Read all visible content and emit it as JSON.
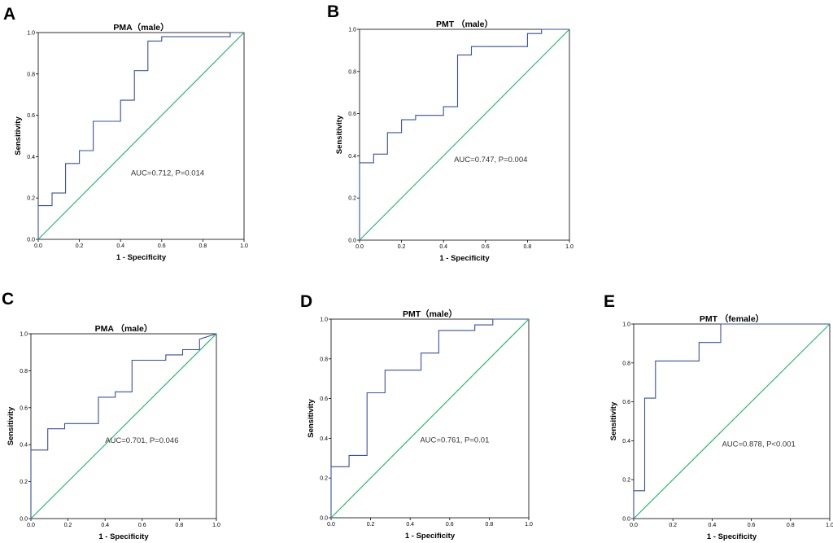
{
  "chart_data": [
    {
      "panel": "A",
      "type": "line",
      "title": "PMA（male）",
      "xlabel": "1 - Specificity",
      "ylabel": "Sensitivity",
      "xlim": [
        0,
        1
      ],
      "ylim": [
        0,
        1
      ],
      "ticks": [
        "0.0",
        "0.2",
        "0.4",
        "0.6",
        "0.8",
        "1.0"
      ],
      "annotation": "AUC=0.712, P=0.014",
      "series": [
        {
          "name": "ROC",
          "x": [
            0,
            0,
            0.067,
            0.067,
            0.133,
            0.133,
            0.2,
            0.2,
            0.267,
            0.267,
            0.4,
            0.4,
            0.467,
            0.467,
            0.533,
            0.533,
            0.6,
            0.6,
            0.933,
            0.933,
            1.0
          ],
          "y": [
            0,
            0.163,
            0.163,
            0.224,
            0.224,
            0.367,
            0.367,
            0.429,
            0.429,
            0.571,
            0.571,
            0.673,
            0.673,
            0.816,
            0.816,
            0.959,
            0.959,
            0.98,
            0.98,
            1.0,
            1.0
          ]
        },
        {
          "name": "Reference",
          "x": [
            0,
            1
          ],
          "y": [
            0,
            1
          ]
        }
      ]
    },
    {
      "panel": "B",
      "type": "line",
      "title": "PMT （male）",
      "xlabel": "1 - Specificity",
      "ylabel": "Sensitivity",
      "xlim": [
        0,
        1
      ],
      "ylim": [
        0,
        1
      ],
      "ticks": [
        "0.0",
        "0.2",
        "0.4",
        "0.6",
        "0.8",
        "1.0"
      ],
      "annotation": "AUC=0.747, P=0.004",
      "series": [
        {
          "name": "ROC",
          "x": [
            0,
            0,
            0.067,
            0.067,
            0.133,
            0.133,
            0.2,
            0.2,
            0.267,
            0.267,
            0.4,
            0.4,
            0.467,
            0.467,
            0.533,
            0.533,
            0.8,
            0.8,
            0.867,
            0.867,
            1.0
          ],
          "y": [
            0,
            0.367,
            0.367,
            0.408,
            0.408,
            0.51,
            0.51,
            0.571,
            0.571,
            0.592,
            0.592,
            0.633,
            0.633,
            0.878,
            0.878,
            0.918,
            0.918,
            0.98,
            0.98,
            1.0,
            1.0
          ]
        },
        {
          "name": "Reference",
          "x": [
            0,
            1
          ],
          "y": [
            0,
            1
          ]
        }
      ]
    },
    {
      "panel": "C",
      "type": "line",
      "title": "PMA （male）",
      "xlabel": "1 - Specificity",
      "ylabel": "Sensitivity",
      "xlim": [
        0,
        1
      ],
      "ylim": [
        0,
        1
      ],
      "ticks": [
        "0.0",
        "0.2",
        "0.4",
        "0.6",
        "0.8",
        "1.0"
      ],
      "annotation": "AUC=0.701, P=0.046",
      "series": [
        {
          "name": "ROC",
          "x": [
            0,
            0,
            0.091,
            0.091,
            0.182,
            0.182,
            0.364,
            0.364,
            0.455,
            0.455,
            0.545,
            0.545,
            0.727,
            0.727,
            0.818,
            0.818,
            0.909,
            0.909,
            1.0
          ],
          "y": [
            0,
            0.371,
            0.371,
            0.486,
            0.486,
            0.514,
            0.514,
            0.657,
            0.657,
            0.686,
            0.686,
            0.857,
            0.857,
            0.886,
            0.886,
            0.914,
            0.914,
            0.971,
            1.0
          ]
        },
        {
          "name": "Reference",
          "x": [
            0,
            1
          ],
          "y": [
            0,
            1
          ]
        }
      ]
    },
    {
      "panel": "D",
      "type": "line",
      "title": "PMT（male）",
      "xlabel": "1 - Specificity",
      "ylabel": "Sensitivity",
      "xlim": [
        0,
        1
      ],
      "ylim": [
        0,
        1
      ],
      "ticks": [
        "0.0",
        "0.2",
        "0.4",
        "0.6",
        "0.8",
        "1.0"
      ],
      "annotation": "AUC=0.761, P=0.01",
      "series": [
        {
          "name": "ROC",
          "x": [
            0,
            0,
            0.091,
            0.091,
            0.182,
            0.182,
            0.273,
            0.273,
            0.455,
            0.455,
            0.545,
            0.545,
            0.727,
            0.727,
            0.818,
            0.818,
            1.0
          ],
          "y": [
            0,
            0.257,
            0.257,
            0.314,
            0.314,
            0.629,
            0.629,
            0.743,
            0.743,
            0.829,
            0.829,
            0.943,
            0.943,
            0.971,
            0.971,
            1.0,
            1.0
          ]
        },
        {
          "name": "Reference",
          "x": [
            0,
            1
          ],
          "y": [
            0,
            1
          ]
        }
      ]
    },
    {
      "panel": "E",
      "type": "line",
      "title": "PMT （female）",
      "xlabel": "1 - Specificity",
      "ylabel": "Sensitivity",
      "xlim": [
        0,
        1
      ],
      "ylim": [
        0,
        1
      ],
      "ticks": [
        "0.0",
        "0.2",
        "0.4",
        "0.6",
        "0.8",
        "1.0"
      ],
      "annotation": "AUC=0.878, P<0.001",
      "series": [
        {
          "name": "ROC",
          "x": [
            0,
            0,
            0.056,
            0.056,
            0.111,
            0.111,
            0.333,
            0.333,
            0.444,
            0.444,
            1.0
          ],
          "y": [
            0,
            0.143,
            0.143,
            0.619,
            0.619,
            0.81,
            0.81,
            0.905,
            0.905,
            1.0,
            1.0
          ]
        },
        {
          "name": "Reference",
          "x": [
            0,
            1
          ],
          "y": [
            0,
            1
          ]
        }
      ]
    }
  ]
}
